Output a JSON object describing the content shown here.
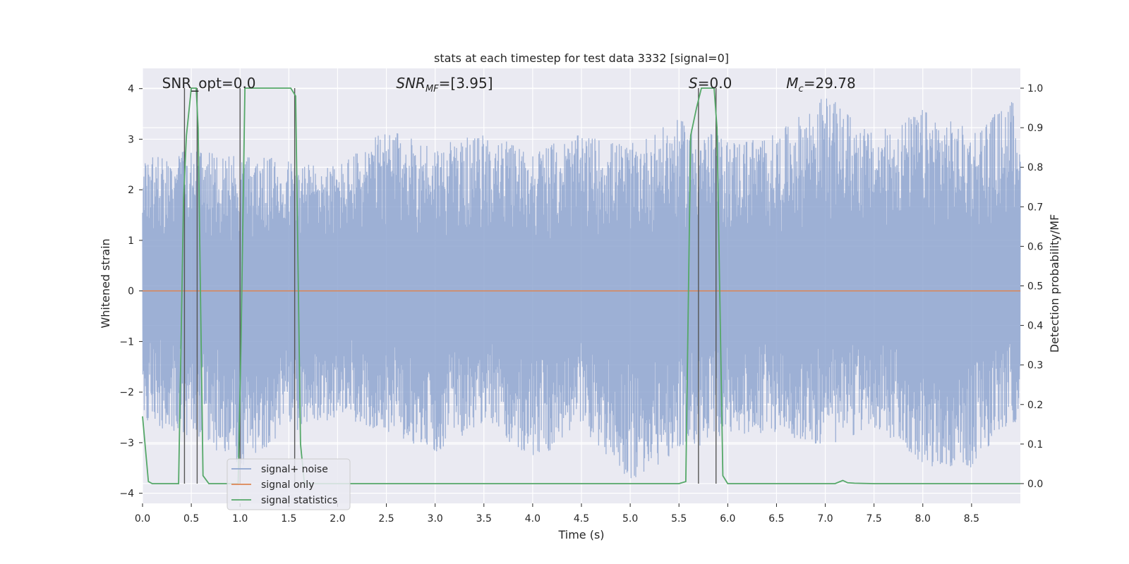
{
  "chart_data": {
    "type": "line",
    "title": "stats at each timestep for test data 3332 [signal=0]",
    "xlabel": "Time (s)",
    "ylabel_left": "Whitened strain",
    "ylabel_right": "Detection probability/MF",
    "xlim": [
      0.0,
      9.0
    ],
    "ylim_left": [
      -4.2,
      4.4
    ],
    "ylim_right": [
      -0.05,
      1.05
    ],
    "x_ticks": [
      "0.0",
      "0.5",
      "1.0",
      "1.5",
      "2.0",
      "2.5",
      "3.0",
      "3.5",
      "4.0",
      "4.5",
      "5.0",
      "5.5",
      "6.0",
      "6.5",
      "7.0",
      "7.5",
      "8.0",
      "8.5"
    ],
    "y_left_ticks": [
      "4",
      "3",
      "2",
      "1",
      "0",
      "−1",
      "−2",
      "−3",
      "−4"
    ],
    "y_right_ticks": [
      "1.0",
      "0.9",
      "0.8",
      "0.7",
      "0.6",
      "0.5",
      "0.4",
      "0.3",
      "0.2",
      "0.1",
      "0.0"
    ],
    "grid": true,
    "legend_position": "lower-left",
    "annotations": [
      {
        "text": "SNR_opt=0.0",
        "x": 0.2
      },
      {
        "text": "SNR_MF=[3.95]",
        "x": 2.6
      },
      {
        "text": "S=0.0",
        "x": 5.6
      },
      {
        "text": "M_c=29.78",
        "x": 6.6
      }
    ],
    "series": [
      {
        "name": "signal+ noise",
        "axis": "left",
        "color": "#8fa6d0",
        "description_values": "whitened noise, roughly symmetric about 0, peaks near +4 and -4",
        "envelope_upper": [
          [
            0.0,
            2.6
          ],
          [
            0.5,
            2.8
          ],
          [
            1.0,
            2.7
          ],
          [
            1.5,
            2.6
          ],
          [
            2.0,
            2.5
          ],
          [
            2.5,
            3.2
          ],
          [
            3.0,
            2.9
          ],
          [
            3.5,
            3.1
          ],
          [
            4.0,
            2.8
          ],
          [
            4.5,
            3.1
          ],
          [
            5.0,
            2.9
          ],
          [
            5.5,
            3.4
          ],
          [
            6.0,
            3.0
          ],
          [
            6.5,
            3.1
          ],
          [
            7.0,
            3.9
          ],
          [
            7.5,
            3.1
          ],
          [
            8.0,
            3.6
          ],
          [
            8.5,
            3.2
          ],
          [
            9.0,
            3.9
          ]
        ],
        "envelope_lower": [
          [
            0.0,
            -2.6
          ],
          [
            0.5,
            -2.9
          ],
          [
            1.0,
            -3.5
          ],
          [
            1.5,
            -2.8
          ],
          [
            2.0,
            -2.5
          ],
          [
            2.5,
            -2.8
          ],
          [
            3.0,
            -3.2
          ],
          [
            3.5,
            -2.6
          ],
          [
            4.0,
            -3.4
          ],
          [
            4.5,
            -2.7
          ],
          [
            5.0,
            -3.8
          ],
          [
            5.5,
            -3.2
          ],
          [
            6.0,
            -2.9
          ],
          [
            6.5,
            -2.8
          ],
          [
            7.0,
            -3.1
          ],
          [
            7.5,
            -2.7
          ],
          [
            8.0,
            -3.5
          ],
          [
            8.5,
            -3.5
          ],
          [
            9.0,
            -2.5
          ]
        ]
      },
      {
        "name": "signal only",
        "axis": "left",
        "color": "#dd8452",
        "x": [
          0.0,
          9.0
        ],
        "y": [
          0.0,
          0.0
        ]
      },
      {
        "name": "signal statistics",
        "axis": "right",
        "color": "#55a868",
        "x": [
          0.0,
          0.06,
          0.1,
          0.37,
          0.42,
          0.45,
          0.5,
          0.55,
          0.57,
          0.62,
          0.68,
          0.98,
          1.01,
          1.05,
          1.08,
          1.52,
          1.57,
          1.62,
          1.66,
          5.5,
          5.57,
          5.62,
          5.68,
          5.73,
          5.86,
          5.89,
          5.95,
          6.0,
          6.5,
          7.1,
          7.18,
          7.23,
          7.3,
          7.5,
          9.0
        ],
        "y": [
          0.17,
          0.005,
          0.0,
          0.0,
          0.72,
          0.88,
          1.0,
          1.0,
          0.9,
          0.02,
          0.0,
          0.0,
          0.36,
          1.0,
          1.0,
          1.0,
          0.98,
          0.1,
          0.0,
          0.0,
          0.005,
          0.88,
          0.95,
          1.0,
          1.0,
          0.9,
          0.02,
          0.0,
          0.0,
          0.0,
          0.008,
          0.002,
          0.001,
          0.0,
          0.0
        ]
      }
    ],
    "vertical_lines": [
      0.43,
      0.56,
      1.0,
      1.56,
      5.7,
      5.88
    ]
  }
}
